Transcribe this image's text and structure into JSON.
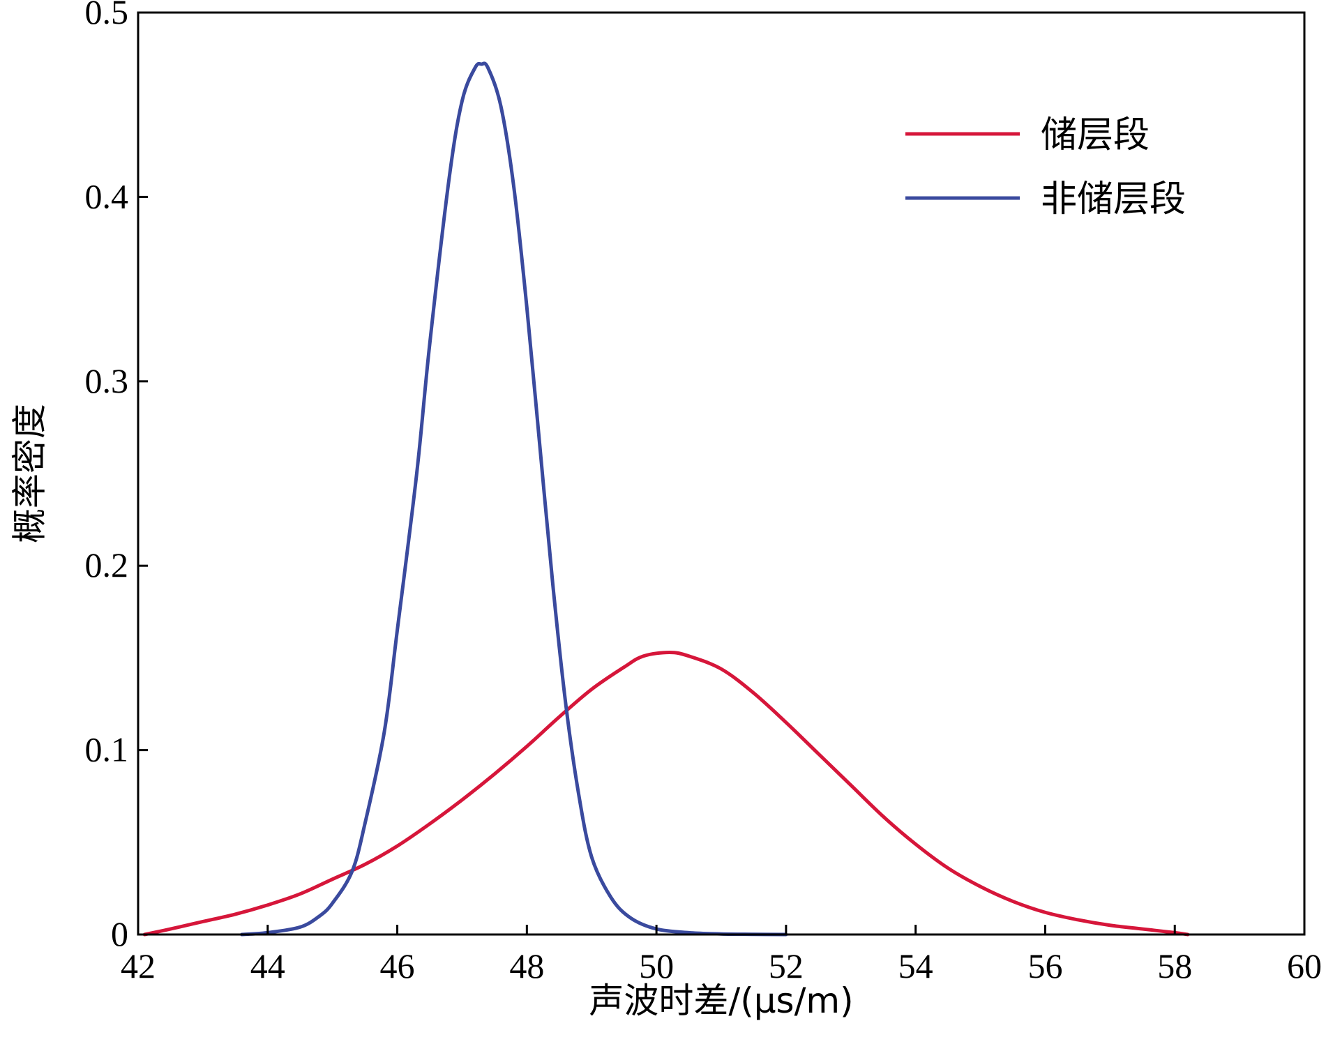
{
  "chart_data": {
    "type": "line",
    "xlabel": "声波时差/(μs/m)",
    "ylabel": "概率密度",
    "xlim": [
      42,
      60
    ],
    "ylim": [
      0,
      0.5
    ],
    "x_ticks": [
      42,
      44,
      46,
      48,
      50,
      52,
      54,
      56,
      58,
      60
    ],
    "x_tick_labels": [
      "42",
      "44",
      "46",
      "48",
      "50",
      "52",
      "54",
      "56",
      "58",
      "60"
    ],
    "y_ticks": [
      0,
      0.1,
      0.2,
      0.3,
      0.4,
      0.5
    ],
    "y_tick_labels": [
      "0",
      "0.1",
      "0.2",
      "0.3",
      "0.4",
      "0.5"
    ],
    "grid": false,
    "legend_position": "top-right",
    "series": [
      {
        "name": "储层段",
        "color": "#d6163a",
        "x": [
          42.1,
          42.5,
          43.0,
          43.5,
          44.0,
          44.5,
          45.0,
          45.5,
          46.0,
          46.5,
          47.0,
          47.5,
          48.0,
          48.5,
          49.0,
          49.5,
          49.8,
          50.2,
          50.5,
          51.0,
          51.5,
          52.0,
          52.5,
          53.0,
          53.5,
          54.0,
          54.5,
          55.0,
          55.5,
          56.0,
          56.5,
          57.0,
          57.5,
          58.0,
          58.2
        ],
        "y": [
          0.0,
          0.003,
          0.007,
          0.011,
          0.016,
          0.022,
          0.03,
          0.038,
          0.048,
          0.06,
          0.073,
          0.087,
          0.102,
          0.118,
          0.133,
          0.145,
          0.151,
          0.153,
          0.151,
          0.144,
          0.131,
          0.115,
          0.098,
          0.081,
          0.064,
          0.049,
          0.036,
          0.026,
          0.018,
          0.012,
          0.008,
          0.005,
          0.003,
          0.001,
          0.0
        ]
      },
      {
        "name": "非储层段",
        "color": "#3a4a9e",
        "x": [
          43.6,
          44.0,
          44.5,
          44.8,
          45.0,
          45.3,
          45.5,
          45.8,
          46.0,
          46.3,
          46.5,
          46.8,
          47.0,
          47.2,
          47.3,
          47.4,
          47.6,
          47.8,
          48.0,
          48.2,
          48.4,
          48.6,
          48.8,
          49.0,
          49.3,
          49.6,
          50.0,
          50.5,
          51.0,
          51.5,
          52.0
        ],
        "y": [
          0.0,
          0.001,
          0.004,
          0.01,
          0.017,
          0.034,
          0.06,
          0.11,
          0.165,
          0.25,
          0.32,
          0.41,
          0.452,
          0.47,
          0.472,
          0.47,
          0.449,
          0.405,
          0.34,
          0.265,
          0.19,
          0.125,
          0.076,
          0.042,
          0.02,
          0.009,
          0.003,
          0.001,
          0.0003,
          0.0001,
          0.0
        ]
      }
    ]
  }
}
